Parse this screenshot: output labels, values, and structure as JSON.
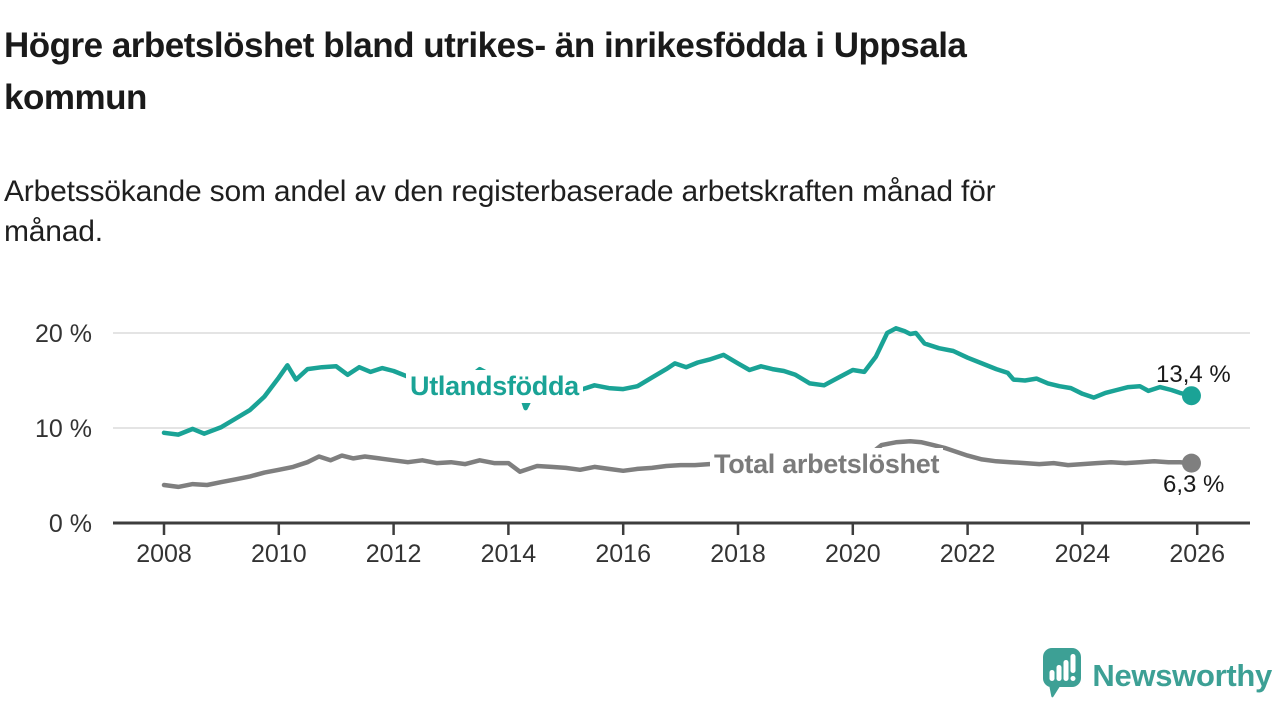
{
  "header": {
    "title_lines": [
      "Högre arbetslöshet bland utrikes- än inrikesfödda i Uppsala",
      "kommun"
    ],
    "subtitle_lines": [
      "Arbetssökande som andel av den registerbaserade arbetskraften månad för",
      "månad."
    ]
  },
  "annotations": {
    "series1_label": "Utlandsfödda",
    "series2_label": "Total arbetslöshet",
    "series1_end_value": "13,4 %",
    "series2_end_value": "6,3 %"
  },
  "footer": {
    "brand": "Newsworthy",
    "logo_icon": "newsworthy-speech-bubble-bar-chart-icon"
  },
  "colors": {
    "series1": "#1aa396",
    "series2": "#7f7f7f",
    "grid": "#dcdcdc",
    "axis": "#3d3d3d",
    "axis_text": "#333333",
    "text": "#1a1a1a",
    "brand": "#3da095"
  },
  "chart_data": {
    "type": "line",
    "title": "Högre arbetslöshet bland utrikes- än inrikesfödda i Uppsala kommun",
    "subtitle": "Arbetssökande som andel av den registerbaserade arbetskraften månad för månad.",
    "xlabel": "",
    "ylabel": "",
    "unit": "%",
    "grid": "horizontal-only",
    "legend_position": "inline-labels",
    "x_axis": {
      "range": [
        2007.1,
        2026.8
      ],
      "ticks": [
        2008,
        2010,
        2012,
        2014,
        2016,
        2018,
        2020,
        2022,
        2024,
        2026
      ],
      "tick_labels": [
        "2008",
        "2010",
        "2012",
        "2014",
        "2016",
        "2018",
        "2020",
        "2022",
        "2024",
        "2026"
      ]
    },
    "y_axis": {
      "range": [
        0,
        21.5
      ],
      "ticks": [
        0,
        10,
        20
      ],
      "tick_labels": [
        "0 %",
        "10 %",
        "20 %"
      ]
    },
    "series": [
      {
        "name": "Utlandsfödda",
        "color": "#1aa396",
        "end_value": 13.4,
        "end_label": "13,4 %",
        "points": [
          [
            2008.0,
            9.5
          ],
          [
            2008.25,
            9.3
          ],
          [
            2008.5,
            9.9
          ],
          [
            2008.7,
            9.4
          ],
          [
            2009.0,
            10.1
          ],
          [
            2009.25,
            11.0
          ],
          [
            2009.5,
            11.9
          ],
          [
            2009.75,
            13.3
          ],
          [
            2010.0,
            15.3
          ],
          [
            2010.15,
            16.6
          ],
          [
            2010.3,
            15.1
          ],
          [
            2010.5,
            16.2
          ],
          [
            2010.75,
            16.4
          ],
          [
            2011.0,
            16.5
          ],
          [
            2011.2,
            15.6
          ],
          [
            2011.4,
            16.4
          ],
          [
            2011.6,
            15.9
          ],
          [
            2011.8,
            16.3
          ],
          [
            2012.0,
            16.0
          ],
          [
            2012.25,
            15.4
          ],
          [
            2012.5,
            15.7
          ],
          [
            2012.75,
            15.2
          ],
          [
            2013.0,
            15.3
          ],
          [
            2013.25,
            15.0
          ],
          [
            2013.5,
            16.2
          ],
          [
            2013.75,
            15.4
          ],
          [
            2014.0,
            14.9
          ],
          [
            2014.2,
            13.9
          ],
          [
            2014.3,
            12.1
          ],
          [
            2014.45,
            13.9
          ],
          [
            2014.6,
            14.3
          ],
          [
            2014.8,
            14.5
          ],
          [
            2015.0,
            14.2
          ],
          [
            2015.25,
            14.0
          ],
          [
            2015.5,
            14.5
          ],
          [
            2015.75,
            14.2
          ],
          [
            2016.0,
            14.1
          ],
          [
            2016.25,
            14.4
          ],
          [
            2016.5,
            15.3
          ],
          [
            2016.75,
            16.2
          ],
          [
            2016.9,
            16.8
          ],
          [
            2017.1,
            16.4
          ],
          [
            2017.3,
            16.9
          ],
          [
            2017.5,
            17.2
          ],
          [
            2017.75,
            17.7
          ],
          [
            2018.0,
            16.8
          ],
          [
            2018.2,
            16.1
          ],
          [
            2018.4,
            16.5
          ],
          [
            2018.6,
            16.2
          ],
          [
            2018.8,
            16.0
          ],
          [
            2019.0,
            15.6
          ],
          [
            2019.25,
            14.7
          ],
          [
            2019.5,
            14.5
          ],
          [
            2019.75,
            15.3
          ],
          [
            2020.0,
            16.1
          ],
          [
            2020.2,
            15.9
          ],
          [
            2020.4,
            17.5
          ],
          [
            2020.6,
            20.0
          ],
          [
            2020.75,
            20.5
          ],
          [
            2020.9,
            20.2
          ],
          [
            2021.0,
            19.9
          ],
          [
            2021.1,
            20.0
          ],
          [
            2021.25,
            18.9
          ],
          [
            2021.5,
            18.4
          ],
          [
            2021.75,
            18.1
          ],
          [
            2022.0,
            17.4
          ],
          [
            2022.25,
            16.8
          ],
          [
            2022.5,
            16.2
          ],
          [
            2022.7,
            15.8
          ],
          [
            2022.8,
            15.1
          ],
          [
            2023.0,
            15.0
          ],
          [
            2023.2,
            15.2
          ],
          [
            2023.4,
            14.7
          ],
          [
            2023.6,
            14.4
          ],
          [
            2023.8,
            14.2
          ],
          [
            2024.0,
            13.6
          ],
          [
            2024.2,
            13.2
          ],
          [
            2024.4,
            13.7
          ],
          [
            2024.6,
            14.0
          ],
          [
            2024.8,
            14.3
          ],
          [
            2025.0,
            14.4
          ],
          [
            2025.15,
            13.9
          ],
          [
            2025.35,
            14.3
          ],
          [
            2025.55,
            14.0
          ],
          [
            2025.7,
            13.7
          ],
          [
            2025.9,
            13.4
          ]
        ]
      },
      {
        "name": "Total arbetslöshet",
        "color": "#7f7f7f",
        "end_value": 6.3,
        "end_label": "6,3 %",
        "points": [
          [
            2008.0,
            4.0
          ],
          [
            2008.25,
            3.8
          ],
          [
            2008.5,
            4.1
          ],
          [
            2008.75,
            4.0
          ],
          [
            2009.0,
            4.3
          ],
          [
            2009.25,
            4.6
          ],
          [
            2009.5,
            4.9
          ],
          [
            2009.75,
            5.3
          ],
          [
            2010.0,
            5.6
          ],
          [
            2010.25,
            5.9
          ],
          [
            2010.5,
            6.4
          ],
          [
            2010.7,
            7.0
          ],
          [
            2010.9,
            6.6
          ],
          [
            2011.1,
            7.1
          ],
          [
            2011.3,
            6.8
          ],
          [
            2011.5,
            7.0
          ],
          [
            2011.75,
            6.8
          ],
          [
            2012.0,
            6.6
          ],
          [
            2012.25,
            6.4
          ],
          [
            2012.5,
            6.6
          ],
          [
            2012.75,
            6.3
          ],
          [
            2013.0,
            6.4
          ],
          [
            2013.25,
            6.2
          ],
          [
            2013.5,
            6.6
          ],
          [
            2013.75,
            6.3
          ],
          [
            2014.0,
            6.3
          ],
          [
            2014.2,
            5.4
          ],
          [
            2014.5,
            6.0
          ],
          [
            2014.75,
            5.9
          ],
          [
            2015.0,
            5.8
          ],
          [
            2015.25,
            5.6
          ],
          [
            2015.5,
            5.9
          ],
          [
            2015.75,
            5.7
          ],
          [
            2016.0,
            5.5
          ],
          [
            2016.25,
            5.7
          ],
          [
            2016.5,
            5.8
          ],
          [
            2016.75,
            6.0
          ],
          [
            2017.0,
            6.1
          ],
          [
            2017.25,
            6.1
          ],
          [
            2017.5,
            6.2
          ],
          [
            2017.75,
            6.2
          ],
          [
            2018.0,
            6.1
          ],
          [
            2018.25,
            6.0
          ],
          [
            2018.5,
            6.1
          ],
          [
            2018.75,
            6.0
          ],
          [
            2019.0,
            6.0
          ],
          [
            2019.25,
            5.9
          ],
          [
            2019.5,
            6.0
          ],
          [
            2019.75,
            6.2
          ],
          [
            2020.0,
            6.4
          ],
          [
            2020.25,
            7.0
          ],
          [
            2020.5,
            8.2
          ],
          [
            2020.75,
            8.5
          ],
          [
            2021.0,
            8.6
          ],
          [
            2021.2,
            8.5
          ],
          [
            2021.4,
            8.2
          ],
          [
            2021.6,
            7.9
          ],
          [
            2021.8,
            7.5
          ],
          [
            2022.0,
            7.1
          ],
          [
            2022.25,
            6.7
          ],
          [
            2022.5,
            6.5
          ],
          [
            2022.75,
            6.4
          ],
          [
            2023.0,
            6.3
          ],
          [
            2023.25,
            6.2
          ],
          [
            2023.5,
            6.3
          ],
          [
            2023.75,
            6.1
          ],
          [
            2024.0,
            6.2
          ],
          [
            2024.25,
            6.3
          ],
          [
            2024.5,
            6.4
          ],
          [
            2024.75,
            6.3
          ],
          [
            2025.0,
            6.4
          ],
          [
            2025.25,
            6.5
          ],
          [
            2025.5,
            6.4
          ],
          [
            2025.7,
            6.4
          ],
          [
            2025.9,
            6.3
          ]
        ]
      }
    ]
  }
}
